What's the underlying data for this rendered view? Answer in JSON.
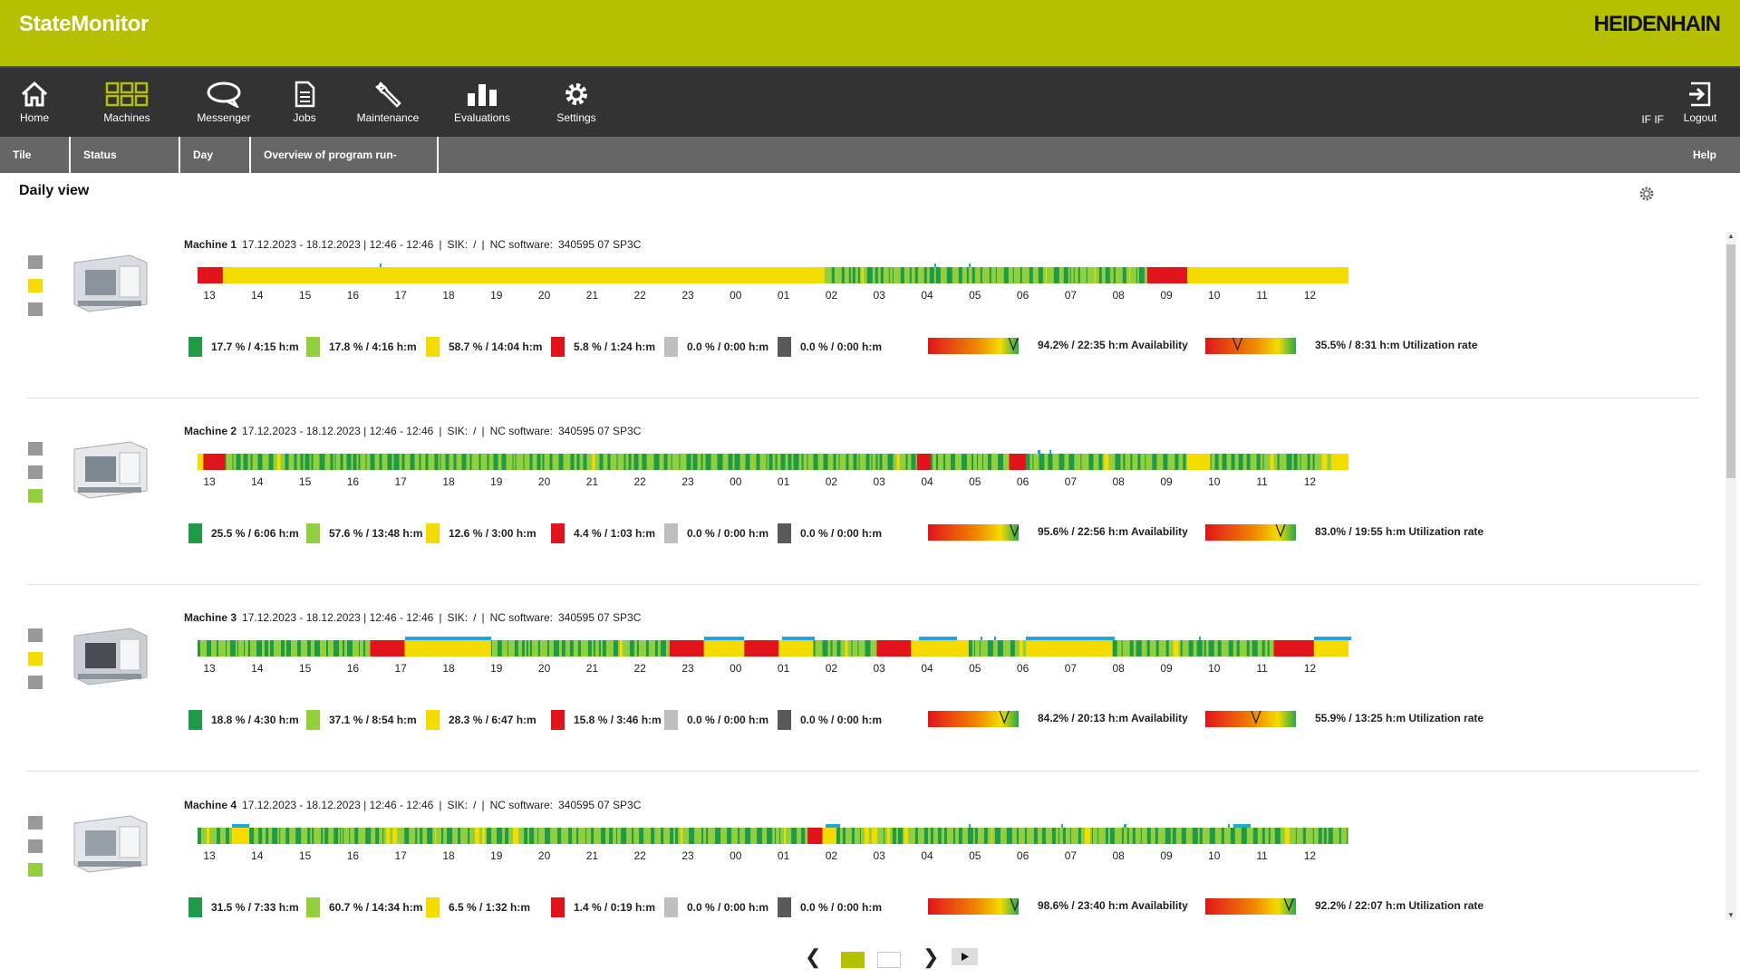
{
  "header": {
    "app_title": "StateMonitor",
    "brand": "HEIDENHAIN"
  },
  "nav": {
    "items": [
      {
        "label": "Home",
        "icon": "home-icon"
      },
      {
        "label": "Machines",
        "icon": "machines-grid-icon"
      },
      {
        "label": "Messenger",
        "icon": "chat-bubble-icon"
      },
      {
        "label": "Jobs",
        "icon": "document-icon"
      },
      {
        "label": "Maintenance",
        "icon": "wrench-icon"
      },
      {
        "label": "Evaluations",
        "icon": "bar-chart-icon"
      },
      {
        "label": "Settings",
        "icon": "gear-icon"
      }
    ],
    "active": "Machines",
    "user": "IF IF",
    "logout": "Logout"
  },
  "subnav": {
    "tabs": [
      "Tile view",
      "Status overview",
      "Day view",
      "Overview of program run-times"
    ],
    "help": "Help"
  },
  "page_title": "Daily view",
  "colors": {
    "accent": "#b5c000",
    "dark_green": "#1e9a48",
    "light_green": "#92cf3c",
    "yellow": "#f5dc00",
    "red": "#e1141b",
    "light_gray": "#bfbfbf",
    "dark_gray": "#595959",
    "blue": "#1ea6e0"
  },
  "ticks": [
    "13",
    "14",
    "15",
    "16",
    "17",
    "18",
    "19",
    "20",
    "21",
    "22",
    "23",
    "00",
    "01",
    "02",
    "03",
    "04",
    "05",
    "06",
    "07",
    "08",
    "09",
    "10",
    "11",
    "12"
  ],
  "machines": [
    {
      "name": "Machine 1",
      "period": "17.12.2023 - 18.12.2023 | 12:46 - 12:46",
      "sik": "SIK:",
      "sik_value": "/",
      "nc_label": "NC software:",
      "nc_value": "340595 07 SP3C",
      "status_squares": [
        "#999999",
        "#f5dc00",
        "#999999"
      ],
      "legend": [
        "17.7 % / 4:15 h:m",
        "17.8 % / 4:16 h:m",
        "58.7 % / 14:04 h:m",
        "5.8 % / 1:24 h:m",
        "0.0 % / 0:00 h:m",
        "0.0 % / 0:00 h:m"
      ],
      "availability": "94.2% / 22:35 h:m Availability",
      "availability_value": 94.2,
      "utilization": "35.5% / 8:31 h:m Utilization rate",
      "utilization_value": 35.5
    },
    {
      "name": "Machine 2",
      "period": "17.12.2023 - 18.12.2023 | 12:46 - 12:46",
      "sik": "SIK:",
      "sik_value": "/",
      "nc_label": "NC software:",
      "nc_value": "340595 07 SP3C",
      "status_squares": [
        "#999999",
        "#999999",
        "#92cf3c"
      ],
      "legend": [
        "25.5 % / 6:06 h:m",
        "57.6 % / 13:48 h:m",
        "12.6 % / 3:00 h:m",
        "4.4 % / 1:03 h:m",
        "0.0 % / 0:00 h:m",
        "0.0 % / 0:00 h:m"
      ],
      "availability": "95.6% / 22:56 h:m Availability",
      "availability_value": 95.6,
      "utilization": "83.0% / 19:55 h:m Utilization rate",
      "utilization_value": 83.0
    },
    {
      "name": "Machine 3",
      "period": "17.12.2023 - 18.12.2023 | 12:46 - 12:46",
      "sik": "SIK:",
      "sik_value": "/",
      "nc_label": "NC software:",
      "nc_value": "340595 07 SP3C",
      "status_squares": [
        "#999999",
        "#f5dc00",
        "#999999"
      ],
      "legend": [
        "18.8 % / 4:30 h:m",
        "37.1 % / 8:54 h:m",
        "28.3 % / 6:47 h:m",
        "15.8 % / 3:46 h:m",
        "0.0 % / 0:00 h:m",
        "0.0 % / 0:00 h:m"
      ],
      "availability": "84.2% / 20:13 h:m Availability",
      "availability_value": 84.2,
      "utilization": "55.9% / 13:25 h:m Utilization rate",
      "utilization_value": 55.9
    },
    {
      "name": "Machine 4",
      "period": "17.12.2023 - 18.12.2023 | 12:46 - 12:46",
      "sik": "SIK:",
      "sik_value": "/",
      "nc_label": "NC software:",
      "nc_value": "340595 07 SP3C",
      "status_squares": [
        "#999999",
        "#999999",
        "#92cf3c"
      ],
      "legend": [
        "31.5 % / 7:33 h:m",
        "60.7 % / 14:34 h:m",
        "6.5 % / 1:32 h:m",
        "1.4 % / 0:19 h:m",
        "0.0 % / 0:00 h:m",
        "0.0 % / 0:00 h:m"
      ],
      "availability": "98.6% / 23:40 h:m Availability",
      "availability_value": 98.6,
      "utilization": "92.2% / 22:07 h:m Utilization rate",
      "utilization_value": 92.2
    }
  ],
  "pagination": {
    "pages": 2,
    "current": 1
  }
}
